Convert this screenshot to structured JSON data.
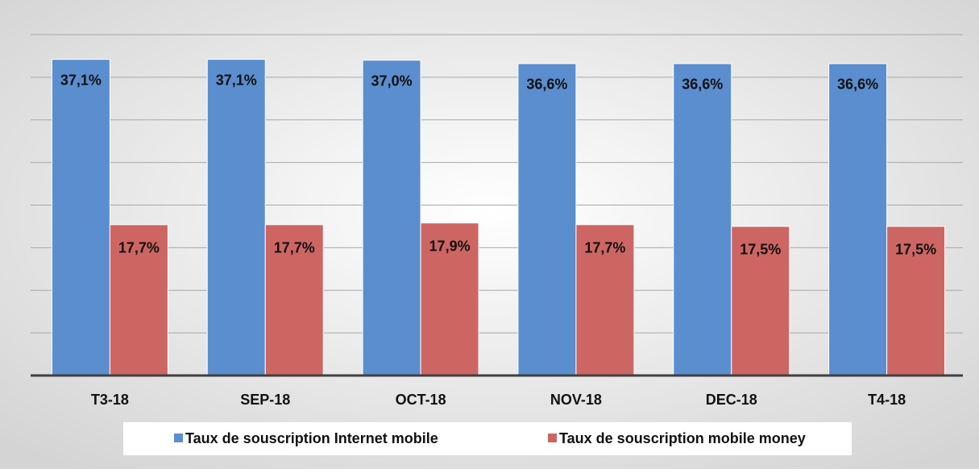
{
  "chart_data": {
    "type": "bar",
    "categories": [
      "T3-18",
      "SEP-18",
      "OCT-18",
      "NOV-18",
      "DEC-18",
      "T4-18"
    ],
    "series": [
      {
        "name": "Taux de souscription Internet mobile",
        "color": "#5b8ecf",
        "values": [
          37.1,
          37.1,
          37.0,
          36.6,
          36.6,
          36.6
        ],
        "value_labels": [
          "37,1%",
          "37,1%",
          "37,0%",
          "36,6%",
          "36,6%",
          "36,6%"
        ]
      },
      {
        "name": "Taux de souscription mobile money",
        "color": "#cd6663",
        "values": [
          17.7,
          17.7,
          17.9,
          17.7,
          17.5,
          17.5
        ],
        "value_labels": [
          "17,7%",
          "17,7%",
          "17,9%",
          "17,7%",
          "17,5%",
          "17,5%"
        ]
      }
    ],
    "ylim": [
      0,
      40
    ],
    "yticks": [
      0,
      5,
      10,
      15,
      20,
      25,
      30,
      35,
      40
    ],
    "grid": true
  }
}
